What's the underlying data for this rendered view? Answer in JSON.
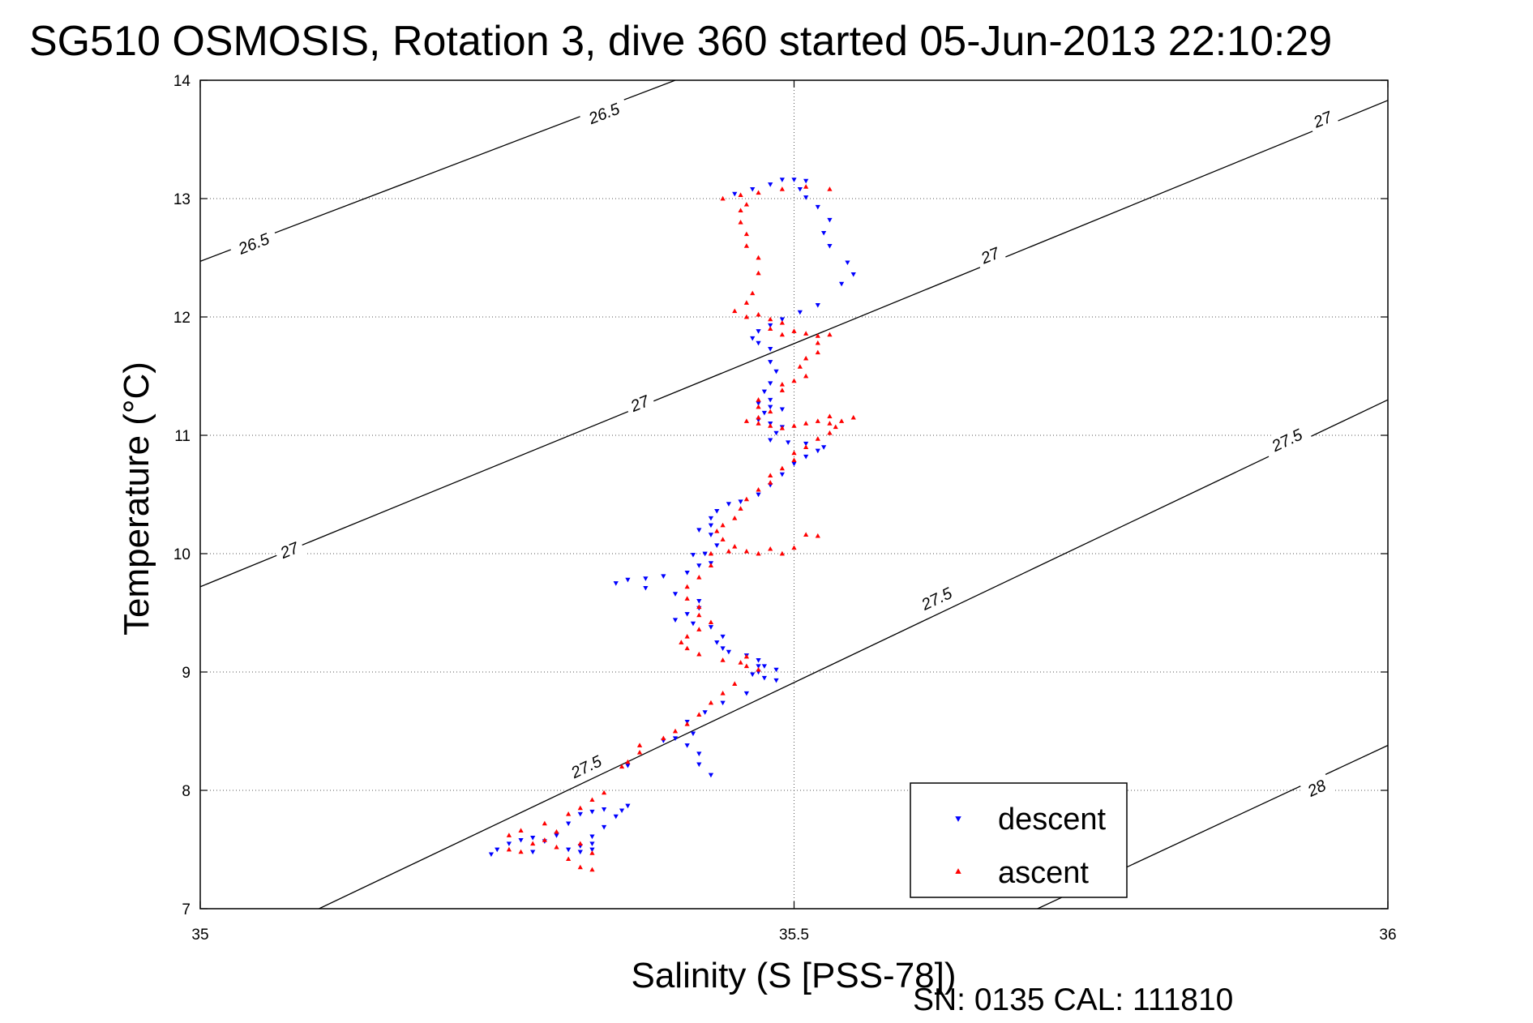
{
  "chart_data": {
    "type": "scatter",
    "title": "SG510 OSMOSIS, Rotation 3, dive 360 started 05-Jun-2013 22:10:29",
    "xlabel": "Salinity (S [PSS-78])",
    "ylabel": "Temperature (°C)",
    "xlim": [
      35,
      36
    ],
    "ylim": [
      7,
      14
    ],
    "x_ticks": [
      "35",
      "35.5",
      "36"
    ],
    "y_ticks": [
      "7",
      "8",
      "9",
      "10",
      "11",
      "12",
      "13",
      "14"
    ],
    "grid": true,
    "legend_position": "bottom-right",
    "footer": "SN: 0135  CAL: 111810",
    "contours": [
      {
        "label": "26.5",
        "points": [
          [
            35.0,
            12.47
          ],
          [
            35.4,
            14.0
          ]
        ],
        "label_positions": [
          [
            35.045,
            12.62
          ],
          [
            35.34,
            13.72
          ]
        ]
      },
      {
        "label": "27",
        "points": [
          [
            35.0,
            9.72
          ],
          [
            36.0,
            13.83
          ]
        ],
        "label_positions": [
          [
            35.075,
            10.03
          ],
          [
            35.37,
            11.27
          ],
          [
            35.665,
            12.52
          ],
          [
            35.945,
            13.67
          ]
        ]
      },
      {
        "label": "27.5",
        "points": [
          [
            35.1,
            7.0
          ],
          [
            36.0,
            11.3
          ]
        ],
        "label_positions": [
          [
            35.325,
            8.2
          ],
          [
            35.62,
            9.62
          ],
          [
            35.915,
            10.96
          ]
        ]
      },
      {
        "label": "28",
        "points": [
          [
            35.705,
            7.0
          ],
          [
            36.0,
            8.38
          ]
        ],
        "label_positions": [
          [
            35.94,
            8.02
          ]
        ]
      }
    ],
    "series": [
      {
        "name": "descent",
        "color": "#0000ff",
        "marker": "triangle-down",
        "points": [
          [
            35.45,
            13.04
          ],
          [
            35.465,
            13.08
          ],
          [
            35.48,
            13.12
          ],
          [
            35.49,
            13.16
          ],
          [
            35.5,
            13.16
          ],
          [
            35.51,
            13.15
          ],
          [
            35.505,
            13.08
          ],
          [
            35.51,
            13.01
          ],
          [
            35.52,
            12.93
          ],
          [
            35.53,
            12.82
          ],
          [
            35.525,
            12.71
          ],
          [
            35.53,
            12.6
          ],
          [
            35.545,
            12.46
          ],
          [
            35.55,
            12.36
          ],
          [
            35.54,
            12.28
          ],
          [
            35.52,
            12.1
          ],
          [
            35.505,
            12.04
          ],
          [
            35.49,
            11.98
          ],
          [
            35.48,
            11.93
          ],
          [
            35.47,
            11.88
          ],
          [
            35.465,
            11.82
          ],
          [
            35.47,
            11.78
          ],
          [
            35.48,
            11.73
          ],
          [
            35.48,
            11.62
          ],
          [
            35.485,
            11.54
          ],
          [
            35.48,
            11.44
          ],
          [
            35.475,
            11.37
          ],
          [
            35.48,
            11.3
          ],
          [
            35.47,
            11.27
          ],
          [
            35.48,
            11.24
          ],
          [
            35.49,
            11.22
          ],
          [
            35.475,
            11.19
          ],
          [
            35.47,
            11.13
          ],
          [
            35.48,
            11.1
          ],
          [
            35.49,
            11.07
          ],
          [
            35.485,
            11.02
          ],
          [
            35.48,
            10.96
          ],
          [
            35.495,
            10.94
          ],
          [
            35.51,
            10.93
          ],
          [
            35.525,
            10.9
          ],
          [
            35.52,
            10.87
          ],
          [
            35.51,
            10.82
          ],
          [
            35.5,
            10.76
          ],
          [
            35.49,
            10.67
          ],
          [
            35.48,
            10.58
          ],
          [
            35.47,
            10.5
          ],
          [
            35.455,
            10.44
          ],
          [
            35.445,
            10.42
          ],
          [
            35.435,
            10.36
          ],
          [
            35.43,
            10.3
          ],
          [
            35.43,
            10.24
          ],
          [
            35.42,
            10.2
          ],
          [
            35.43,
            10.16
          ],
          [
            35.435,
            10.07
          ],
          [
            35.425,
            10.0
          ],
          [
            35.415,
            9.99
          ],
          [
            35.43,
            9.92
          ],
          [
            35.42,
            9.9
          ],
          [
            35.41,
            9.84
          ],
          [
            35.39,
            9.81
          ],
          [
            35.375,
            9.79
          ],
          [
            35.36,
            9.78
          ],
          [
            35.35,
            9.75
          ],
          [
            35.375,
            9.71
          ],
          [
            35.4,
            9.66
          ],
          [
            35.42,
            9.6
          ],
          [
            35.42,
            9.54
          ],
          [
            35.41,
            9.49
          ],
          [
            35.4,
            9.44
          ],
          [
            35.415,
            9.41
          ],
          [
            35.43,
            9.38
          ],
          [
            35.44,
            9.3
          ],
          [
            35.435,
            9.25
          ],
          [
            35.44,
            9.2
          ],
          [
            35.445,
            9.17
          ],
          [
            35.46,
            9.14
          ],
          [
            35.47,
            9.1
          ],
          [
            35.475,
            9.05
          ],
          [
            35.47,
            9.0
          ],
          [
            35.465,
            8.98
          ],
          [
            35.475,
            8.95
          ],
          [
            35.485,
            8.93
          ],
          [
            35.485,
            9.02
          ],
          [
            35.47,
            9.05
          ],
          [
            35.46,
            8.82
          ],
          [
            35.44,
            8.74
          ],
          [
            35.425,
            8.66
          ],
          [
            35.41,
            8.58
          ],
          [
            35.415,
            8.48
          ],
          [
            35.41,
            8.38
          ],
          [
            35.42,
            8.31
          ],
          [
            35.42,
            8.22
          ],
          [
            35.43,
            8.13
          ],
          [
            35.4,
            8.44
          ],
          [
            35.39,
            8.42
          ],
          [
            35.36,
            8.21
          ],
          [
            35.36,
            7.87
          ],
          [
            35.355,
            7.83
          ],
          [
            35.35,
            7.78
          ],
          [
            35.34,
            7.84
          ],
          [
            35.33,
            7.82
          ],
          [
            35.34,
            7.69
          ],
          [
            35.33,
            7.61
          ],
          [
            35.33,
            7.55
          ],
          [
            35.33,
            7.5
          ],
          [
            35.31,
            7.5
          ],
          [
            35.32,
            7.48
          ],
          [
            35.32,
            7.53
          ],
          [
            35.28,
            7.6
          ],
          [
            35.3,
            7.62
          ],
          [
            35.27,
            7.58
          ],
          [
            35.26,
            7.55
          ],
          [
            35.25,
            7.5
          ],
          [
            35.245,
            7.46
          ],
          [
            35.28,
            7.48
          ],
          [
            35.29,
            7.57
          ],
          [
            35.3,
            7.63
          ],
          [
            35.31,
            7.72
          ],
          [
            35.32,
            7.8
          ]
        ]
      },
      {
        "name": "ascent",
        "color": "#ff0000",
        "marker": "triangle-up",
        "points": [
          [
            35.44,
            13.0
          ],
          [
            35.455,
            13.03
          ],
          [
            35.47,
            13.05
          ],
          [
            35.49,
            13.08
          ],
          [
            35.51,
            13.1
          ],
          [
            35.53,
            13.08
          ],
          [
            35.46,
            12.95
          ],
          [
            35.455,
            12.9
          ],
          [
            35.455,
            12.8
          ],
          [
            35.46,
            12.7
          ],
          [
            35.46,
            12.6
          ],
          [
            35.47,
            12.5
          ],
          [
            35.47,
            12.37
          ],
          [
            35.465,
            12.2
          ],
          [
            35.46,
            12.12
          ],
          [
            35.45,
            12.05
          ],
          [
            35.46,
            12.0
          ],
          [
            35.47,
            12.02
          ],
          [
            35.48,
            11.98
          ],
          [
            35.49,
            11.95
          ],
          [
            35.48,
            11.9
          ],
          [
            35.49,
            11.85
          ],
          [
            35.5,
            11.88
          ],
          [
            35.51,
            11.86
          ],
          [
            35.52,
            11.84
          ],
          [
            35.53,
            11.85
          ],
          [
            35.52,
            11.78
          ],
          [
            35.52,
            11.7
          ],
          [
            35.51,
            11.65
          ],
          [
            35.505,
            11.58
          ],
          [
            35.51,
            11.5
          ],
          [
            35.5,
            11.46
          ],
          [
            35.49,
            11.43
          ],
          [
            35.49,
            11.38
          ],
          [
            35.47,
            11.3
          ],
          [
            35.47,
            11.24
          ],
          [
            35.48,
            11.2
          ],
          [
            35.47,
            11.15
          ],
          [
            35.46,
            11.12
          ],
          [
            35.47,
            11.1
          ],
          [
            35.48,
            11.08
          ],
          [
            35.49,
            11.06
          ],
          [
            35.5,
            11.08
          ],
          [
            35.51,
            11.1
          ],
          [
            35.52,
            11.12
          ],
          [
            35.53,
            11.1
          ],
          [
            35.54,
            11.12
          ],
          [
            35.55,
            11.15
          ],
          [
            35.53,
            11.16
          ],
          [
            35.535,
            11.07
          ],
          [
            35.53,
            11.02
          ],
          [
            35.52,
            10.97
          ],
          [
            35.51,
            10.9
          ],
          [
            35.5,
            10.85
          ],
          [
            35.5,
            10.79
          ],
          [
            35.49,
            10.72
          ],
          [
            35.48,
            10.66
          ],
          [
            35.48,
            10.6
          ],
          [
            35.47,
            10.54
          ],
          [
            35.46,
            10.46
          ],
          [
            35.455,
            10.38
          ],
          [
            35.45,
            10.3
          ],
          [
            35.44,
            10.24
          ],
          [
            35.435,
            10.19
          ],
          [
            35.44,
            10.12
          ],
          [
            35.45,
            10.06
          ],
          [
            35.46,
            10.02
          ],
          [
            35.47,
            10.0
          ],
          [
            35.48,
            10.04
          ],
          [
            35.49,
            10.0
          ],
          [
            35.5,
            10.05
          ],
          [
            35.51,
            10.16
          ],
          [
            35.52,
            10.15
          ],
          [
            35.43,
            10.0
          ],
          [
            35.445,
            10.02
          ],
          [
            35.43,
            9.9
          ],
          [
            35.42,
            9.8
          ],
          [
            35.41,
            9.72
          ],
          [
            35.41,
            9.62
          ],
          [
            35.42,
            9.55
          ],
          [
            35.42,
            9.48
          ],
          [
            35.43,
            9.42
          ],
          [
            35.42,
            9.36
          ],
          [
            35.41,
            9.3
          ],
          [
            35.405,
            9.25
          ],
          [
            35.41,
            9.2
          ],
          [
            35.42,
            9.15
          ],
          [
            35.44,
            9.1
          ],
          [
            35.455,
            9.08
          ],
          [
            35.46,
            9.05
          ],
          [
            35.46,
            9.13
          ],
          [
            35.47,
            9.02
          ],
          [
            35.45,
            8.9
          ],
          [
            35.44,
            8.82
          ],
          [
            35.43,
            8.74
          ],
          [
            35.42,
            8.64
          ],
          [
            35.41,
            8.56
          ],
          [
            35.4,
            8.5
          ],
          [
            35.39,
            8.44
          ],
          [
            35.37,
            8.38
          ],
          [
            35.37,
            8.32
          ],
          [
            35.36,
            8.24
          ],
          [
            35.355,
            8.2
          ],
          [
            35.34,
            7.98
          ],
          [
            35.33,
            7.92
          ],
          [
            35.32,
            7.85
          ],
          [
            35.31,
            7.8
          ],
          [
            35.29,
            7.72
          ],
          [
            35.27,
            7.66
          ],
          [
            35.26,
            7.62
          ],
          [
            35.28,
            7.55
          ],
          [
            35.26,
            7.5
          ],
          [
            35.27,
            7.48
          ],
          [
            35.3,
            7.52
          ],
          [
            35.32,
            7.55
          ],
          [
            35.33,
            7.47
          ],
          [
            35.31,
            7.42
          ],
          [
            35.32,
            7.35
          ],
          [
            35.33,
            7.33
          ],
          [
            35.29,
            7.58
          ],
          [
            35.3,
            7.65
          ]
        ]
      }
    ]
  }
}
